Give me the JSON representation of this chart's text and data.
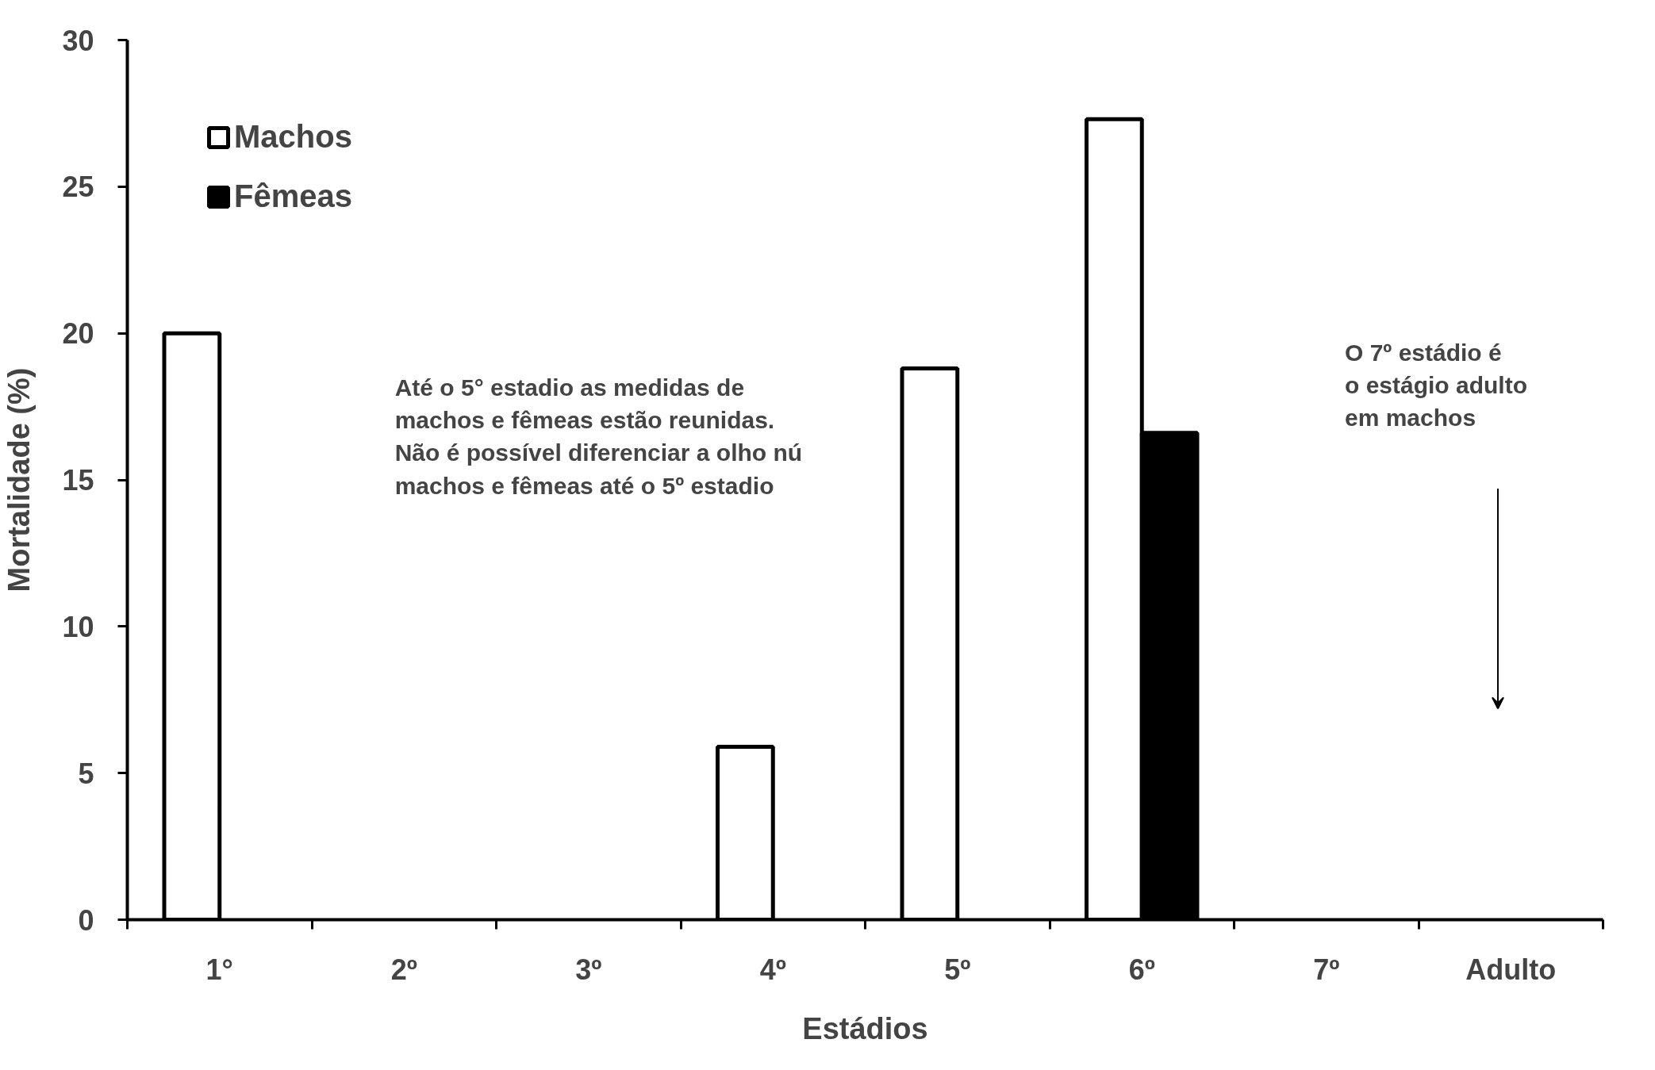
{
  "chart_data": {
    "type": "bar",
    "xlabel": "Estádios",
    "ylabel": "Mortalidade (%)",
    "categories": [
      "1°",
      "2º",
      "3º",
      "4º",
      "5º",
      "6º",
      "7º",
      "Adulto"
    ],
    "series": [
      {
        "name": "Machos",
        "color": "#ffffff",
        "values": [
          20,
          null,
          null,
          5.9,
          18.8,
          27.3,
          null,
          null
        ]
      },
      {
        "name": "Fêmeas",
        "color": "#000000",
        "values": [
          null,
          null,
          null,
          null,
          null,
          16.6,
          null,
          null
        ]
      }
    ],
    "ylim": [
      0,
      30
    ],
    "yticks": [
      0,
      5,
      10,
      15,
      20,
      25,
      30
    ],
    "grid": false,
    "legend": "top left",
    "annotations": [
      "Até o 5° estadio as medidas de\nmachos e fêmeas estão reunidas.\nNão é possível diferenciar a olho nú\nmachos e fêmeas até o 5º estadio",
      "O 7º estádio é\no estágio adulto\nem machos"
    ]
  }
}
